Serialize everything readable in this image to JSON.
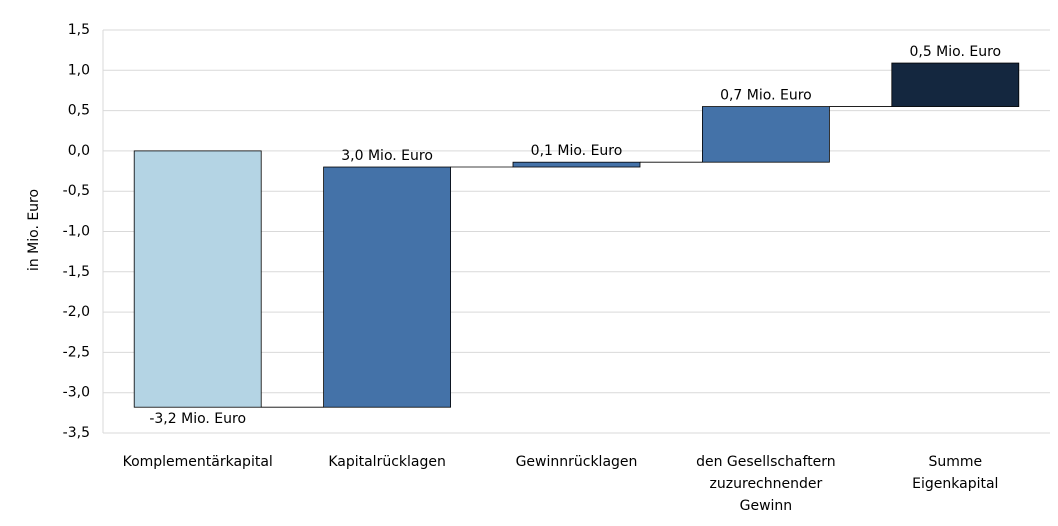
{
  "chart_data": {
    "type": "waterfall",
    "y_label": "in Mio. Euro",
    "categories": [
      "Komplementärkapital",
      "Kapitalrücklagen",
      "Gewinnrücklagen",
      "den Gesellschaftern\nzuzurechnender\nGewinn",
      "Summe\nEigenkapital"
    ],
    "values": [
      -3.18,
      2.98,
      0.06,
      0.69,
      0.54
    ],
    "value_labels": [
      "-3,2 Mio. Euro",
      "3,0 Mio. Euro",
      "0,1 Mio. Euro",
      "0,7 Mio. Euro",
      "0,5 Mio. Euro"
    ],
    "colors": [
      "#b4d4e4",
      "#4472a8",
      "#4472a8",
      "#4472a8",
      "#14273f"
    ],
    "ylim": [
      -3.5,
      1.5
    ],
    "yticks": [
      {
        "value": -3.5,
        "label": "-3,5"
      },
      {
        "value": -3.0,
        "label": "-3,0"
      },
      {
        "value": -2.5,
        "label": "-2,5"
      },
      {
        "value": -2.0,
        "label": "-2,0"
      },
      {
        "value": -1.5,
        "label": "-1,5"
      },
      {
        "value": -1.0,
        "label": "-1,0"
      },
      {
        "value": -0.5,
        "label": "-0,5"
      },
      {
        "value": 0,
        "label": "0,0"
      },
      {
        "value": 0.5,
        "label": "0,5"
      },
      {
        "value": 1.0,
        "label": "1,0"
      },
      {
        "value": 1.5,
        "label": "1,5"
      }
    ],
    "grid": true
  }
}
